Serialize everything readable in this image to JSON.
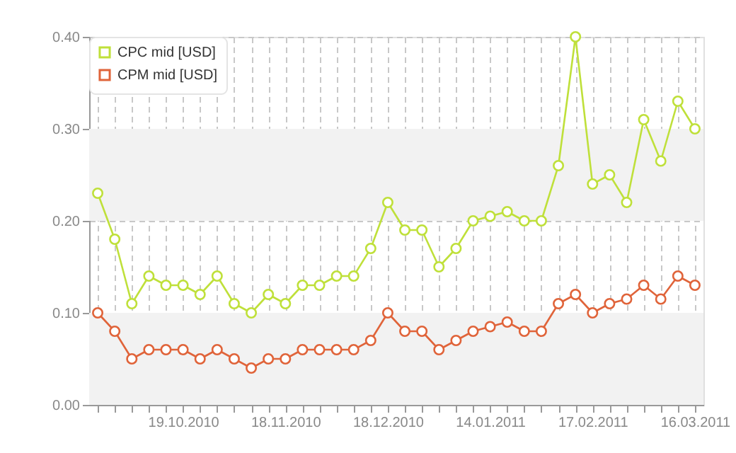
{
  "chart_data": {
    "type": "line",
    "categories": [
      null,
      null,
      null,
      null,
      null,
      "19.10.2010",
      null,
      null,
      null,
      null,
      null,
      "18.11.2010",
      null,
      null,
      null,
      null,
      null,
      "18.12.2010",
      null,
      null,
      null,
      null,
      null,
      "14.01.2011",
      null,
      null,
      null,
      null,
      null,
      "17.02.2011",
      null,
      null,
      null,
      null,
      null,
      "16.03.2011"
    ],
    "series": [
      {
        "name": "CPC mid [USD]",
        "color": "#bfe03a",
        "values": [
          0.23,
          0.18,
          0.11,
          0.14,
          0.13,
          0.13,
          0.12,
          0.14,
          0.11,
          0.1,
          0.12,
          0.11,
          0.13,
          0.13,
          0.14,
          0.14,
          0.17,
          0.22,
          0.19,
          0.19,
          0.15,
          0.17,
          0.2,
          0.205,
          0.21,
          0.2,
          0.2,
          0.26,
          0.4,
          0.24,
          0.25,
          0.22,
          0.31,
          0.265,
          0.33,
          0.3
        ]
      },
      {
        "name": "CPM mid [USD]",
        "color": "#e0643a",
        "values": [
          0.1,
          0.08,
          0.05,
          0.06,
          0.06,
          0.06,
          0.05,
          0.06,
          0.05,
          0.04,
          0.05,
          0.05,
          0.06,
          0.06,
          0.06,
          0.06,
          0.07,
          0.1,
          0.08,
          0.08,
          0.06,
          0.07,
          0.08,
          0.085,
          0.09,
          0.08,
          0.08,
          0.11,
          0.12,
          0.1,
          0.11,
          0.115,
          0.13,
          0.115,
          0.14,
          0.13
        ]
      }
    ],
    "ylim": [
      0,
      0.4
    ],
    "yticks": [
      {
        "value": 0,
        "label": "0.00"
      },
      {
        "value": 0.1,
        "label": "0.10"
      },
      {
        "value": 0.2,
        "label": "0.20"
      },
      {
        "value": 0.3,
        "label": "0.30"
      },
      {
        "value": 0.4,
        "label": "0.40"
      }
    ],
    "bands": [
      {
        "axis": "y",
        "from": 0,
        "to": 0.1,
        "color": "#f2f2f2"
      },
      {
        "axis": "y",
        "from": 0.2,
        "to": 0.3,
        "color": "#f2f2f2"
      }
    ],
    "grid": true,
    "legend": "top left",
    "marker": "circle",
    "line_style": "solid"
  }
}
